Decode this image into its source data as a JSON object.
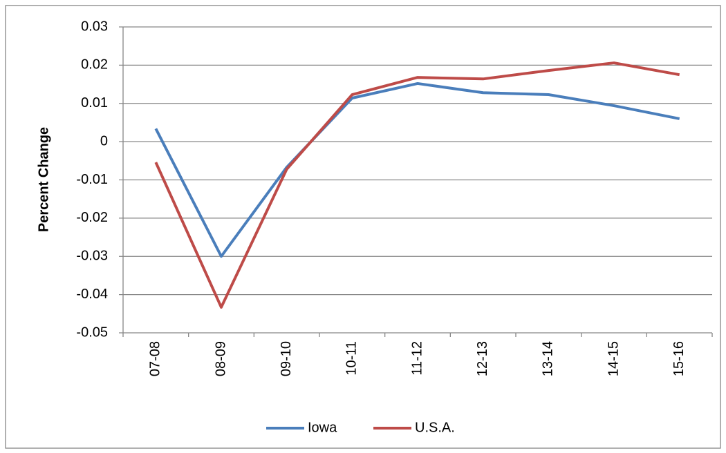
{
  "chart_data": {
    "type": "line",
    "y_label": "Percent Change",
    "categories": [
      "07-08",
      "08-09",
      "09-10",
      "10-11",
      "11-12",
      "12-13",
      "13-14",
      "14-15",
      "15-16"
    ],
    "series": [
      {
        "name": "Iowa",
        "color": "#4a7ebb",
        "values": [
          0.0034,
          -0.03,
          -0.0067,
          0.0114,
          0.0152,
          0.0128,
          0.0123,
          0.0094,
          0.006
        ]
      },
      {
        "name": "U.S.A.",
        "color": "#be4b48",
        "values": [
          -0.0054,
          -0.0433,
          -0.0072,
          0.0123,
          0.0168,
          0.0164,
          0.0186,
          0.0206,
          0.0175
        ]
      }
    ],
    "ylim": [
      -0.05,
      0.03
    ],
    "yticks": [
      -0.05,
      -0.04,
      -0.03,
      -0.02,
      -0.01,
      0,
      0.01,
      0.02,
      0.03
    ],
    "grid": true,
    "legend": "bottom"
  }
}
